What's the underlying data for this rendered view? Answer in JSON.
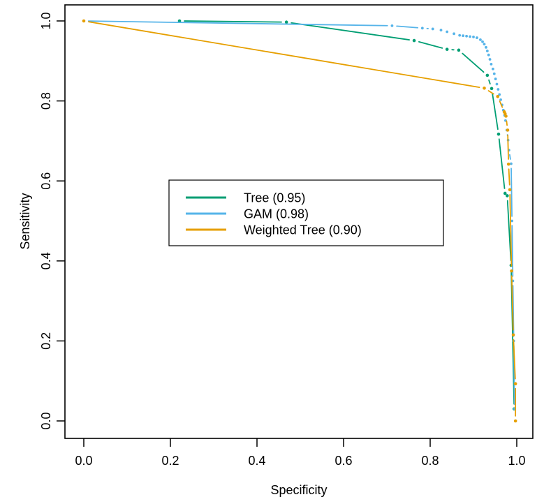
{
  "figure": {
    "background": "#ffffff",
    "axis_color": "#000000"
  },
  "axes": {
    "x_label": "Specificity",
    "y_label": "Sensitivity",
    "x_ticks": [
      "0.0",
      "0.2",
      "0.4",
      "0.6",
      "0.8",
      "1.0"
    ],
    "y_ticks": [
      "0.0",
      "0.2",
      "0.4",
      "0.6",
      "0.8",
      "1.0"
    ]
  },
  "legend": {
    "items": [
      {
        "label": "Tree (0.95)",
        "color": "#009E73"
      },
      {
        "label": "GAM (0.98)",
        "color": "#56B4E9"
      },
      {
        "label": "Weighted Tree (0.90)",
        "color": "#E69F00"
      }
    ]
  },
  "chart_data": {
    "type": "line",
    "subtype": "roc-curves-points-and-lines",
    "title": "",
    "xlabel": "Specificity",
    "ylabel": "Sensitivity",
    "xlim": [
      0,
      1
    ],
    "ylim": [
      0,
      1
    ],
    "grid": false,
    "legend_position": "center-left",
    "series": [
      {
        "name": "Tree",
        "auc": 0.95,
        "color": "#009E73",
        "points": [
          [
            0.221,
            1.0
          ],
          [
            0.468,
            0.997
          ],
          [
            0.763,
            0.951
          ],
          [
            0.839,
            0.929
          ],
          [
            0.866,
            0.927
          ],
          [
            0.932,
            0.864
          ],
          [
            0.942,
            0.831
          ],
          [
            0.958,
            0.717
          ],
          [
            0.973,
            0.569
          ],
          [
            0.978,
            0.563
          ],
          [
            0.987,
            0.389
          ],
          [
            0.994,
            0.03
          ]
        ]
      },
      {
        "name": "GAM",
        "auc": 0.98,
        "color": "#56B4E9",
        "points": [
          [
            0.0,
            1.0
          ],
          [
            0.712,
            0.988
          ],
          [
            0.782,
            0.982
          ],
          [
            0.806,
            0.98
          ],
          [
            0.825,
            0.977
          ],
          [
            0.839,
            0.973
          ],
          [
            0.855,
            0.968
          ],
          [
            0.868,
            0.964
          ],
          [
            0.876,
            0.963
          ],
          [
            0.884,
            0.962
          ],
          [
            0.892,
            0.961
          ],
          [
            0.9,
            0.96
          ],
          [
            0.908,
            0.958
          ],
          [
            0.916,
            0.953
          ],
          [
            0.921,
            0.948
          ],
          [
            0.925,
            0.942
          ],
          [
            0.929,
            0.934
          ],
          [
            0.932,
            0.925
          ],
          [
            0.935,
            0.915
          ],
          [
            0.938,
            0.904
          ],
          [
            0.941,
            0.892
          ],
          [
            0.945,
            0.88
          ],
          [
            0.948,
            0.868
          ],
          [
            0.951,
            0.855
          ],
          [
            0.954,
            0.842
          ],
          [
            0.957,
            0.829
          ],
          [
            0.96,
            0.816
          ],
          [
            0.963,
            0.803
          ],
          [
            0.966,
            0.79
          ],
          [
            0.969,
            0.777
          ],
          [
            0.972,
            0.764
          ],
          [
            0.974,
            0.751
          ],
          [
            0.977,
            0.727
          ],
          [
            0.98,
            0.702
          ],
          [
            0.982,
            0.677
          ],
          [
            0.987,
            0.643
          ],
          [
            0.989,
            0.5
          ],
          [
            0.991,
            0.35
          ],
          [
            0.993,
            0.2
          ],
          [
            0.995,
            0.03
          ]
        ]
      },
      {
        "name": "Weighted Tree",
        "auc": 0.9,
        "color": "#E69F00",
        "points": [
          [
            0.0,
            1.0
          ],
          [
            0.925,
            0.832
          ],
          [
            0.956,
            0.811
          ],
          [
            0.971,
            0.773
          ],
          [
            0.973,
            0.768
          ],
          [
            0.975,
            0.762
          ],
          [
            0.979,
            0.727
          ],
          [
            0.981,
            0.642
          ],
          [
            0.984,
            0.578
          ],
          [
            0.988,
            0.375
          ],
          [
            0.992,
            0.215
          ],
          [
            0.997,
            0.093
          ],
          [
            0.997,
            0.0
          ]
        ]
      }
    ]
  }
}
